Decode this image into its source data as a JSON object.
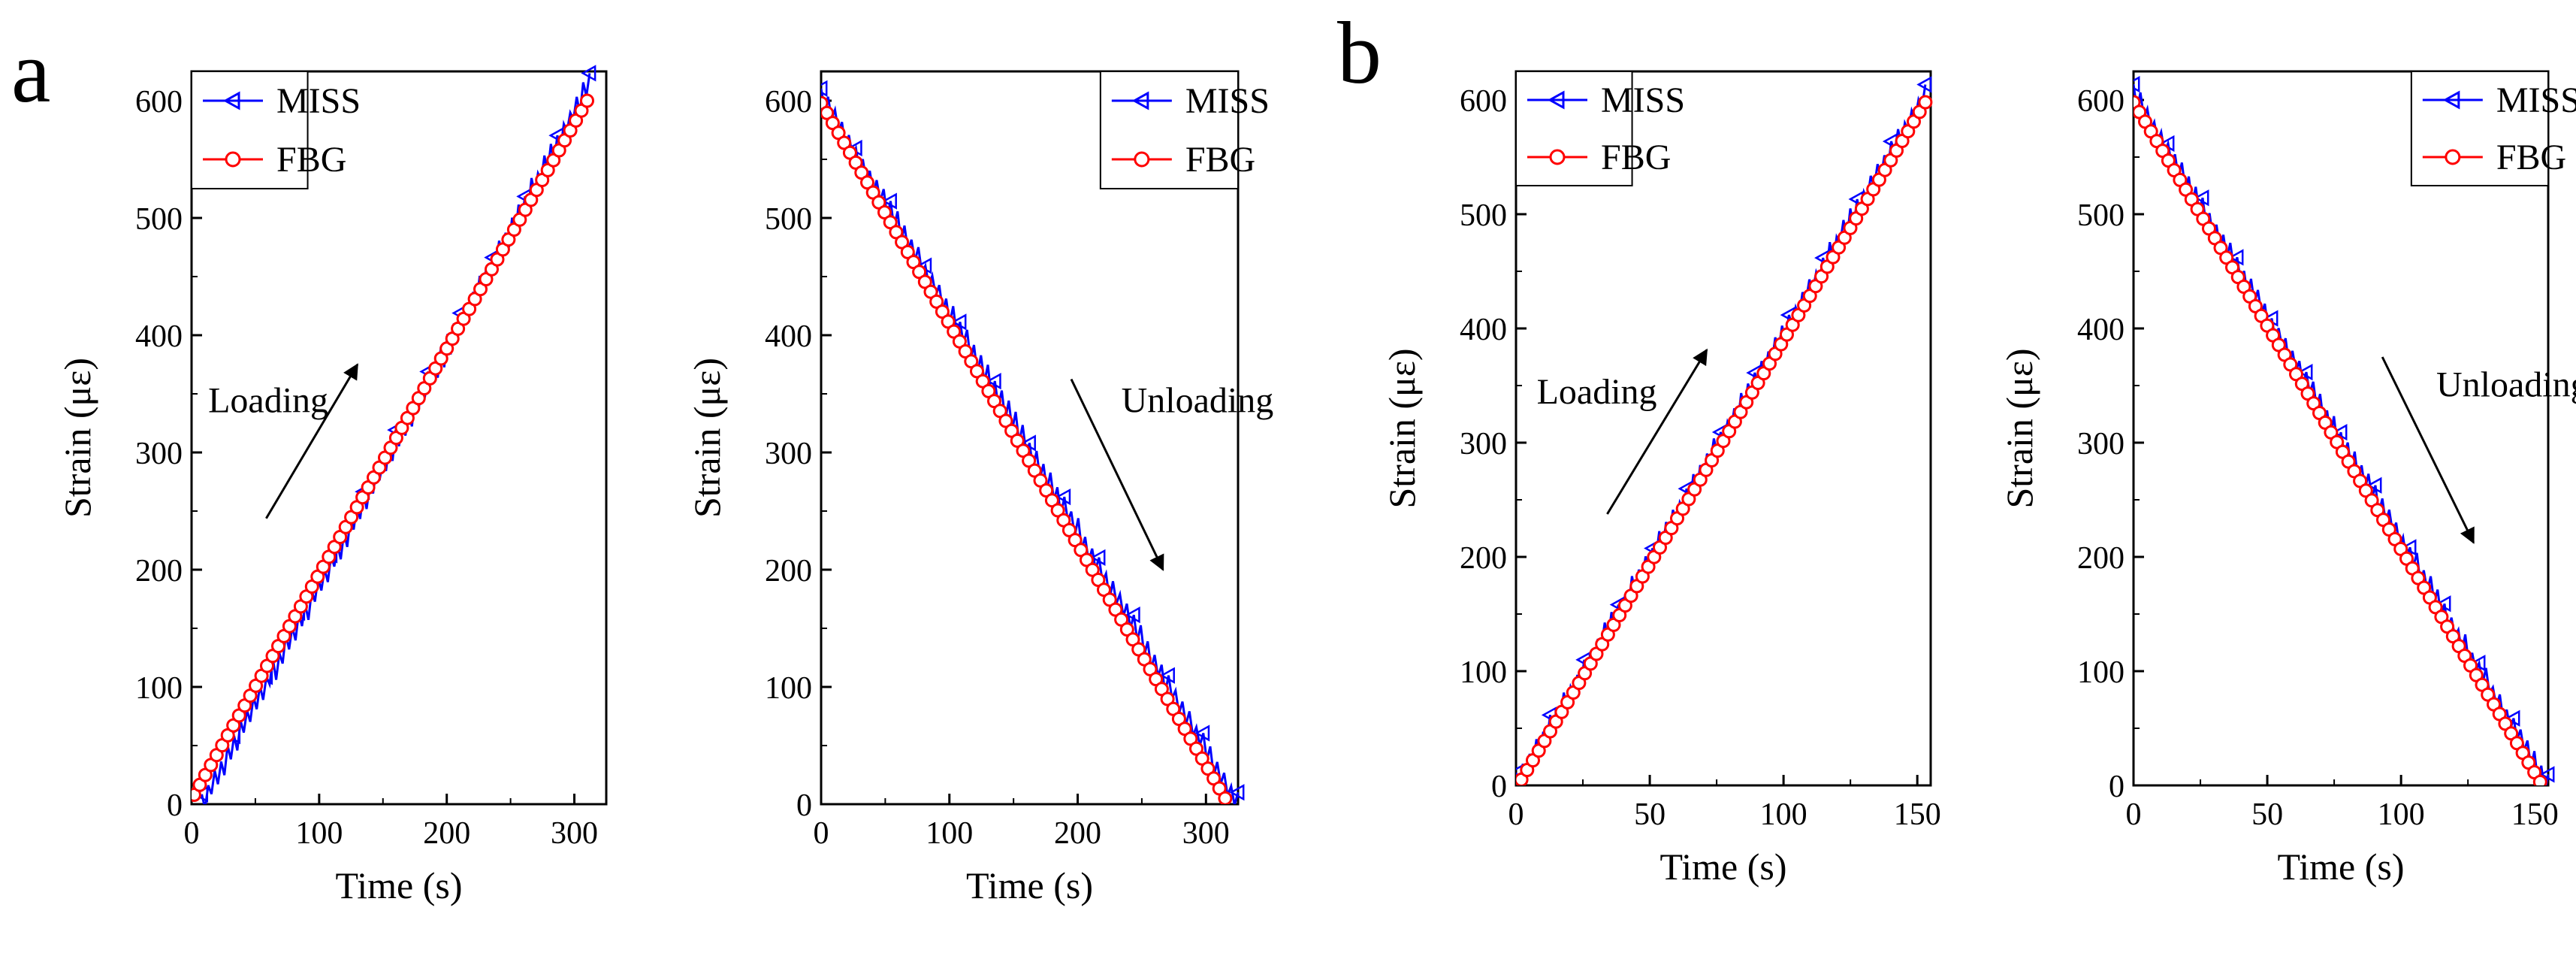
{
  "panels": [
    "a",
    "b"
  ],
  "colors": {
    "miss": "#0000ff",
    "fbg": "#ff0000",
    "axis": "#000000"
  },
  "chart_data": [
    {
      "panel": "a",
      "type": "line",
      "direction": "loading",
      "xlabel": "Time (s)",
      "ylabel": "Strain (με)",
      "xlim": [
        0,
        325
      ],
      "ylim": [
        0,
        625
      ],
      "xticks": [
        0,
        100,
        200,
        300
      ],
      "yticks": [
        0,
        100,
        200,
        300,
        400,
        500,
        600
      ],
      "legend": {
        "position": "top-left",
        "entries": [
          "MISS",
          "FBG"
        ]
      },
      "annotation": "Loading",
      "series": [
        {
          "name": "MISS",
          "marker": "triangle-left",
          "x_range": [
            8,
            312
          ],
          "y_range": [
            0,
            615
          ]
        },
        {
          "name": "FBG",
          "marker": "circle",
          "x_range": [
            2,
            310
          ],
          "y_range": [
            8,
            600
          ]
        }
      ]
    },
    {
      "panel": "a",
      "type": "line",
      "direction": "unloading",
      "xlabel": "Time (s)",
      "ylabel": "Strain (με)",
      "xlim": [
        0,
        325
      ],
      "ylim": [
        0,
        625
      ],
      "xticks": [
        0,
        100,
        200,
        300
      ],
      "yticks": [
        0,
        100,
        200,
        300,
        400,
        500,
        600
      ],
      "legend": {
        "position": "top-right",
        "entries": [
          "MISS",
          "FBG"
        ]
      },
      "annotation": "Unloading",
      "series": [
        {
          "name": "MISS",
          "marker": "triangle-left",
          "x_range": [
            0,
            325
          ],
          "y_range": [
            605,
            0
          ]
        },
        {
          "name": "FBG",
          "marker": "circle",
          "x_range": [
            0,
            315
          ],
          "y_range": [
            598,
            5
          ]
        }
      ]
    },
    {
      "panel": "b",
      "type": "line",
      "direction": "loading",
      "xlabel": "Time (s)",
      "ylabel": "Strain (με)",
      "xlim": [
        0,
        155
      ],
      "ylim": [
        0,
        625
      ],
      "xticks": [
        0,
        50,
        100,
        150
      ],
      "yticks": [
        0,
        100,
        200,
        300,
        400,
        500,
        600
      ],
      "legend": {
        "position": "top-left",
        "entries": [
          "MISS",
          "FBG"
        ]
      },
      "annotation": "Loading",
      "series": [
        {
          "name": "MISS",
          "marker": "triangle-left",
          "x_range": [
            0,
            153
          ],
          "y_range": [
            0,
            605
          ]
        },
        {
          "name": "FBG",
          "marker": "circle",
          "x_range": [
            2,
            153
          ],
          "y_range": [
            5,
            598
          ]
        }
      ]
    },
    {
      "panel": "b",
      "type": "line",
      "direction": "unloading",
      "xlabel": "Time (s)",
      "ylabel": "Strain (με)",
      "xlim": [
        0,
        155
      ],
      "ylim": [
        0,
        625
      ],
      "xticks": [
        0,
        50,
        100,
        150
      ],
      "yticks": [
        0,
        100,
        200,
        300,
        400,
        500,
        600
      ],
      "legend": {
        "position": "top-right",
        "entries": [
          "MISS",
          "FBG"
        ]
      },
      "annotation": "Unloading",
      "series": [
        {
          "name": "MISS",
          "marker": "triangle-left",
          "x_range": [
            0,
            155
          ],
          "y_range": [
            605,
            0
          ]
        },
        {
          "name": "FBG",
          "marker": "circle",
          "x_range": [
            0,
            152
          ],
          "y_range": [
            598,
            3
          ]
        }
      ]
    }
  ]
}
